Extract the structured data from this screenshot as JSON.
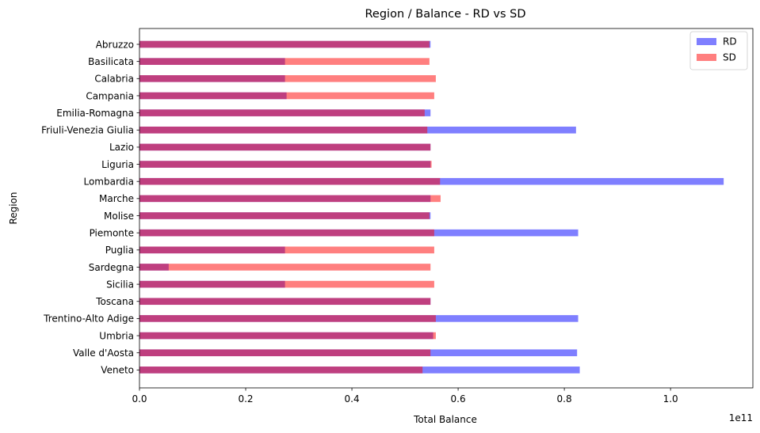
{
  "chart_data": {
    "type": "bar",
    "orientation": "horizontal",
    "title": "Region / Balance - RD vs SD",
    "xlabel": "Total Balance",
    "ylabel": "Region",
    "x_offset_text": "1e11",
    "x_scale": 100000000000,
    "xlim": [
      0,
      1.155
    ],
    "xticks": [
      0.0,
      0.2,
      0.4,
      0.6,
      0.8,
      1.0
    ],
    "xtick_labels": [
      "0.0",
      "0.2",
      "0.4",
      "0.6",
      "0.8",
      "1.0"
    ],
    "grid": false,
    "legend_position": "top-right",
    "categories": [
      "Abruzzo",
      "Basilicata",
      "Calabria",
      "Campania",
      "Emilia-Romagna",
      "Friuli-Venezia Giulia",
      "Lazio",
      "Liguria",
      "Lombardia",
      "Marche",
      "Molise",
      "Piemonte",
      "Puglia",
      "Sardegna",
      "Sicilia",
      "Toscana",
      "Trentino-Alto Adige",
      "Umbria",
      "Valle d'Aosta",
      "Veneto"
    ],
    "series": [
      {
        "name": "RD",
        "color": "#0000ff",
        "opacity": 0.5,
        "values": [
          0.548,
          0.274,
          0.274,
          0.277,
          0.548,
          0.822,
          0.548,
          0.548,
          1.1,
          0.548,
          0.548,
          0.826,
          0.274,
          0.055,
          0.274,
          0.548,
          0.826,
          0.553,
          0.824,
          0.829
        ]
      },
      {
        "name": "SD",
        "color": "#ff0000",
        "opacity": 0.5,
        "values": [
          0.546,
          0.546,
          0.558,
          0.555,
          0.537,
          0.542,
          0.548,
          0.55,
          0.566,
          0.567,
          0.546,
          0.555,
          0.555,
          0.548,
          0.555,
          0.548,
          0.558,
          0.558,
          0.548,
          0.533
        ]
      }
    ]
  }
}
